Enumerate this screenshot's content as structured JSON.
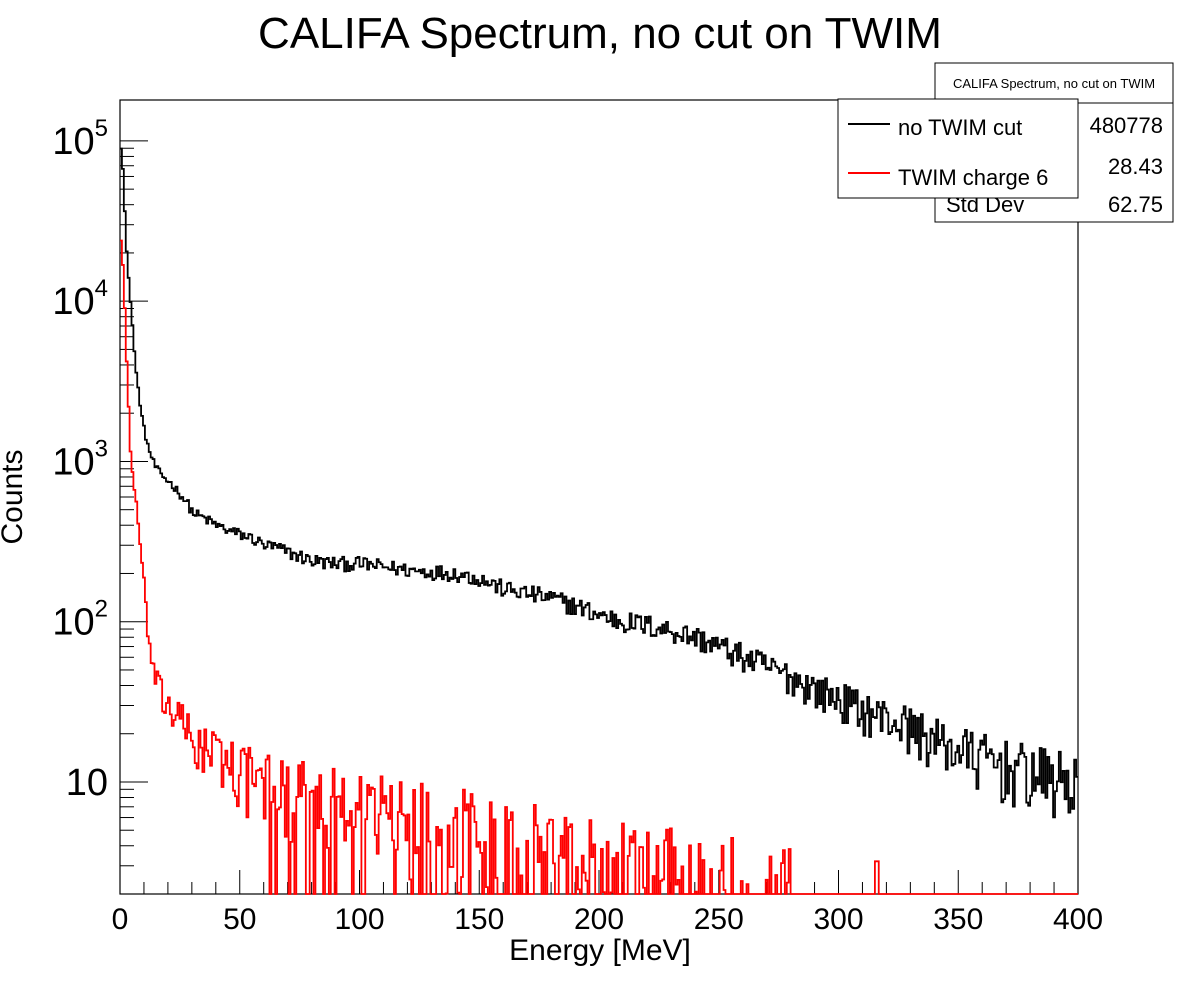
{
  "chart_data": {
    "type": "line",
    "step": true,
    "title": "CALIFA Spectrum, no cut on TWIM",
    "xlabel": "Energy [MeV]",
    "ylabel": "Counts",
    "xlim": [
      0,
      400
    ],
    "ylim": [
      2,
      180000
    ],
    "ylog": true,
    "x_ticks": [
      "0",
      "50",
      "100",
      "150",
      "200",
      "250",
      "300",
      "350",
      "400"
    ],
    "y_ticks": [
      {
        "value": 100000,
        "base": "10",
        "exp": "5"
      },
      {
        "value": 10000,
        "base": "10",
        "exp": "4"
      },
      {
        "value": 1000,
        "base": "10",
        "exp": "3"
      },
      {
        "value": 100,
        "base": "10",
        "exp": "2"
      },
      {
        "value": 10,
        "base": "10",
        "exp": ""
      }
    ],
    "legend": {
      "placement": "top-right",
      "entries": [
        {
          "label": "no TWIM cut",
          "color": "#000000"
        },
        {
          "label": "TWIM charge 6",
          "color": "#ff0000"
        }
      ]
    },
    "stats_box": {
      "title": "CALIFA Spectrum, no cut on TWIM",
      "rows": [
        {
          "label": "",
          "value": "480778"
        },
        {
          "label": "",
          "value": "28.43"
        },
        {
          "label": "Std Dev",
          "value": "62.75"
        }
      ]
    },
    "series": [
      {
        "name": "no TWIM cut",
        "color": "#000000",
        "points": [
          [
            0,
            90000
          ],
          [
            0.5,
            80000
          ],
          [
            1,
            60000
          ],
          [
            1.5,
            40000
          ],
          [
            2,
            25000
          ],
          [
            3,
            15000
          ],
          [
            4,
            10000
          ],
          [
            5,
            6500
          ],
          [
            6,
            4000
          ],
          [
            7,
            3000
          ],
          [
            8,
            2300
          ],
          [
            9,
            1800
          ],
          [
            10,
            1500
          ],
          [
            11,
            1300
          ],
          [
            12,
            1150
          ],
          [
            13,
            1050
          ],
          [
            14,
            950
          ],
          [
            15,
            900
          ],
          [
            17,
            820
          ],
          [
            20,
            750
          ],
          [
            22,
            700
          ],
          [
            25,
            620
          ],
          [
            28,
            540
          ],
          [
            30,
            480
          ],
          [
            35,
            440
          ],
          [
            40,
            400
          ],
          [
            45,
            370
          ],
          [
            50,
            350
          ],
          [
            55,
            330
          ],
          [
            60,
            300
          ],
          [
            65,
            290
          ],
          [
            70,
            270
          ],
          [
            75,
            255
          ],
          [
            80,
            240
          ],
          [
            90,
            230
          ],
          [
            100,
            230
          ],
          [
            110,
            220
          ],
          [
            120,
            210
          ],
          [
            130,
            205
          ],
          [
            140,
            200
          ],
          [
            150,
            185
          ],
          [
            160,
            160
          ],
          [
            170,
            150
          ],
          [
            180,
            140
          ],
          [
            190,
            125
          ],
          [
            200,
            110
          ],
          [
            210,
            100
          ],
          [
            220,
            95
          ],
          [
            230,
            88
          ],
          [
            240,
            80
          ],
          [
            250,
            70
          ],
          [
            260,
            60
          ],
          [
            270,
            52
          ],
          [
            280,
            45
          ],
          [
            290,
            38
          ],
          [
            300,
            33
          ],
          [
            310,
            28
          ],
          [
            320,
            25
          ],
          [
            330,
            22
          ],
          [
            340,
            18
          ],
          [
            350,
            16
          ],
          [
            360,
            14
          ],
          [
            370,
            12.5
          ],
          [
            380,
            11.5
          ],
          [
            390,
            10.5
          ],
          [
            400,
            10
          ]
        ]
      },
      {
        "name": "TWIM charge 6",
        "color": "#ff0000",
        "points": [
          [
            0,
            24000
          ],
          [
            0.5,
            20000
          ],
          [
            1,
            15000
          ],
          [
            1.5,
            10000
          ],
          [
            2,
            6000
          ],
          [
            3,
            2500
          ],
          [
            4,
            1200
          ],
          [
            5,
            800
          ],
          [
            6,
            600
          ],
          [
            7,
            450
          ],
          [
            8,
            300
          ],
          [
            9,
            200
          ],
          [
            10,
            150
          ],
          [
            11,
            100
          ],
          [
            12,
            70
          ],
          [
            13,
            55
          ],
          [
            14,
            45
          ],
          [
            15,
            40
          ],
          [
            17,
            34
          ],
          [
            20,
            30
          ],
          [
            25,
            24
          ],
          [
            30,
            18
          ],
          [
            40,
            15
          ],
          [
            50,
            12
          ],
          [
            60,
            10
          ],
          [
            70,
            9
          ],
          [
            80,
            8.5
          ],
          [
            90,
            8
          ],
          [
            100,
            7.5
          ],
          [
            110,
            7
          ],
          [
            120,
            6.5
          ],
          [
            130,
            6
          ],
          [
            140,
            5.5
          ],
          [
            150,
            5
          ],
          [
            160,
            4.6
          ],
          [
            170,
            4.2
          ],
          [
            180,
            3.9
          ],
          [
            190,
            3.6
          ],
          [
            200,
            3.4
          ],
          [
            210,
            3.2
          ],
          [
            220,
            3
          ],
          [
            230,
            2.8
          ],
          [
            240,
            2.6
          ],
          [
            250,
            2.5
          ],
          [
            260,
            2.4
          ],
          [
            270,
            2.3
          ],
          [
            280,
            2.2
          ]
        ]
      }
    ]
  }
}
